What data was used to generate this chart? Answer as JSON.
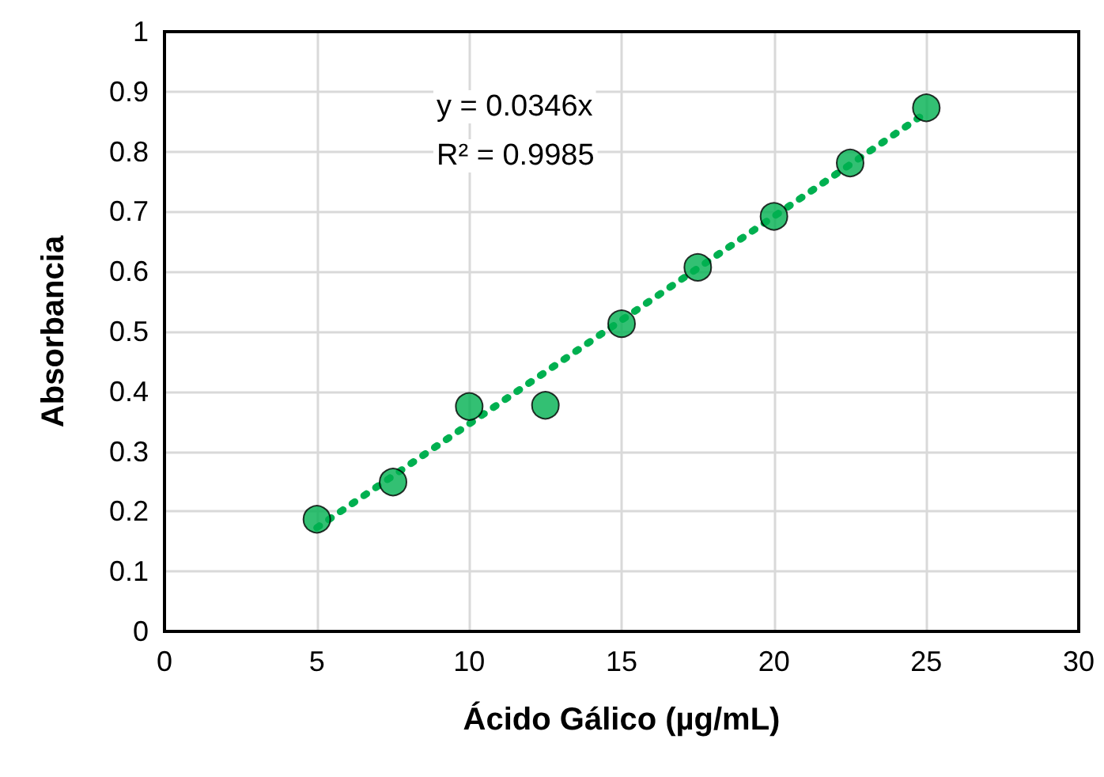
{
  "chart_data": {
    "type": "scatter",
    "xlabel": "Ácido Gálico (µg/mL)",
    "ylabel": "Absorbancia",
    "xlim": [
      0,
      30
    ],
    "xticks": [
      0,
      5,
      10,
      15,
      20,
      25,
      30
    ],
    "ylim": [
      0,
      1
    ],
    "yticks": [
      0,
      0.1,
      0.2,
      0.3,
      0.4,
      0.5,
      0.6,
      0.7,
      0.8,
      0.9,
      1
    ],
    "grid": true,
    "annotations": [
      "y = 0.0346x",
      "R² = 0.9985"
    ],
    "series": [
      {
        "color": "#00b050",
        "marker": "circle",
        "x": [
          5,
          7.5,
          10,
          12.5,
          15,
          17.5,
          20,
          22.5,
          25
        ],
        "values": [
          0.187,
          0.249,
          0.375,
          0.377,
          0.513,
          0.607,
          0.692,
          0.781,
          0.873
        ]
      },
      {
        "type": "line",
        "color": "#00b050",
        "marker": "none",
        "line_style": "dotted",
        "x": [
          5,
          25
        ],
        "values": [
          0.173,
          0.865
        ]
      }
    ]
  }
}
